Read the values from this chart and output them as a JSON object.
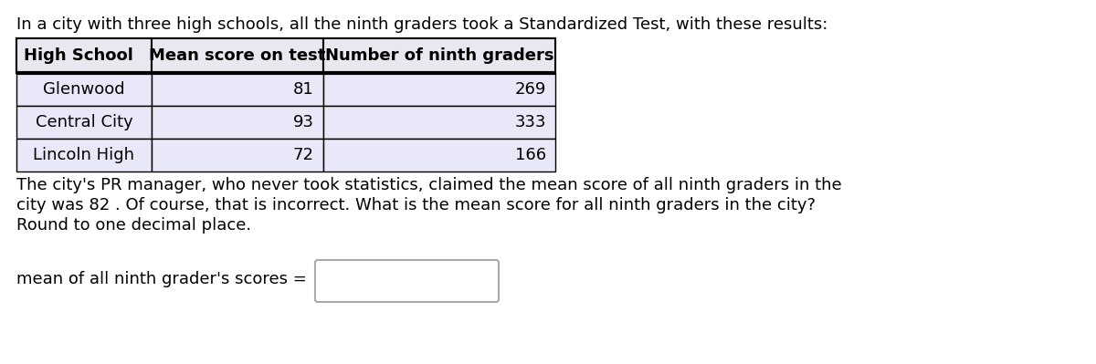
{
  "intro_text": "In a city with three high schools, all the ninth graders took a Standardized Test, with these results:",
  "col_headers": [
    "High School",
    "Mean score on test",
    "Number of ninth graders"
  ],
  "rows": [
    [
      "Glenwood",
      "81",
      "269"
    ],
    [
      "Central City",
      "93",
      "333"
    ],
    [
      "Lincoln High",
      "72",
      "166"
    ]
  ],
  "body_text_line1": "The city's PR manager, who never took statistics, claimed the mean score of all ninth graders in the",
  "body_text_line2": "city was 82 . Of course, that is incorrect. What is the mean score for all ninth graders in the city?",
  "body_text_line3": "Round to one decimal place.",
  "answer_label": "mean of all ninth grader's scores =",
  "header_bg": "#e8e8f0",
  "row_bg": "#e8e8f8",
  "table_border_color": "#000000",
  "header_font_size": 13,
  "body_font_size": 13,
  "background_color": "#ffffff"
}
